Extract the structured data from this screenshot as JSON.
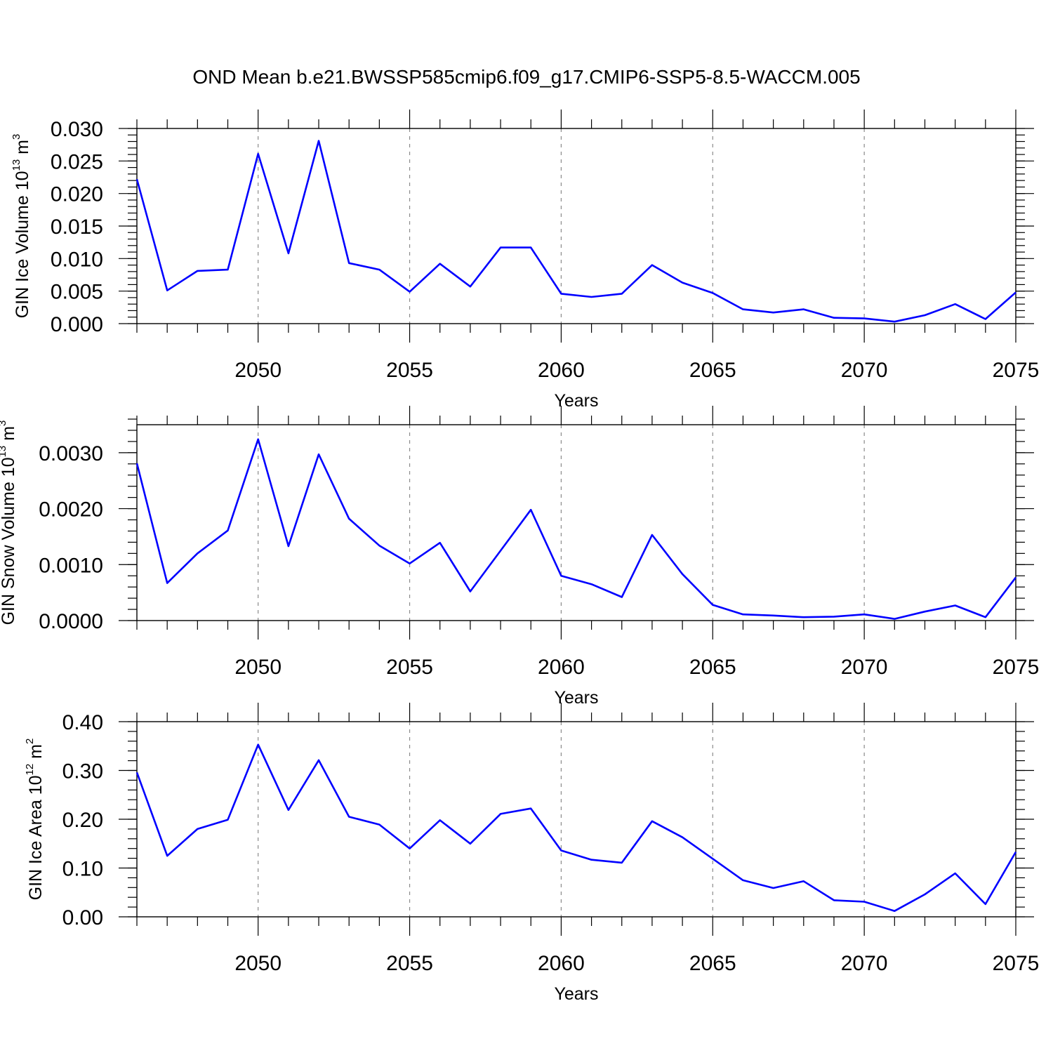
{
  "title": "OND Mean b.e21.BWSSP585cmip6.f09_g17.CMIP6-SSP5-8.5-WACCM.005",
  "chart_data": [
    {
      "type": "line",
      "xlabel": "Years",
      "ylabel": {
        "main": "GIN Ice Volume 10",
        "sup1": "13",
        "unit": " m",
        "sup2": "3"
      },
      "xlim": [
        2046,
        2075
      ],
      "ylim": [
        0,
        0.03
      ],
      "xticks": [
        2050,
        2055,
        2060,
        2065,
        2070,
        2075
      ],
      "yticks": [
        0.0,
        0.005,
        0.01,
        0.015,
        0.02,
        0.025,
        0.03
      ],
      "ytick_labels": [
        "0.000",
        "0.005",
        "0.010",
        "0.015",
        "0.020",
        "0.025",
        "0.030"
      ],
      "y_minor_step": 0.001,
      "grid": "vertical dashed at major x ticks",
      "color": "#0000ff",
      "x": [
        2046,
        2047,
        2048,
        2049,
        2050,
        2051,
        2052,
        2053,
        2054,
        2055,
        2056,
        2057,
        2058,
        2059,
        2060,
        2061,
        2062,
        2063,
        2064,
        2065,
        2066,
        2067,
        2068,
        2069,
        2070,
        2071,
        2072,
        2073,
        2074,
        2075
      ],
      "values": [
        0.0222,
        0.0051,
        0.0081,
        0.0083,
        0.0261,
        0.0108,
        0.0281,
        0.0093,
        0.0083,
        0.0049,
        0.0092,
        0.0057,
        0.0117,
        0.0117,
        0.0046,
        0.0041,
        0.0046,
        0.009,
        0.0063,
        0.0047,
        0.0022,
        0.0017,
        0.0022,
        0.0009,
        0.0008,
        0.0003,
        0.0013,
        0.003,
        0.0007,
        0.0048
      ]
    },
    {
      "type": "line",
      "xlabel": "Years",
      "ylabel": {
        "main": "GIN Snow Volume 10",
        "sup1": "13",
        "unit": " m",
        "sup2": "3"
      },
      "xlim": [
        2046,
        2075
      ],
      "ylim": [
        0,
        0.0035
      ],
      "xticks": [
        2050,
        2055,
        2060,
        2065,
        2070,
        2075
      ],
      "yticks": [
        0.0,
        0.001,
        0.002,
        0.003
      ],
      "ytick_labels": [
        "0.0000",
        "0.0010",
        "0.0020",
        "0.0030"
      ],
      "y_minor_step": 0.0002,
      "grid": "vertical dashed at major x ticks",
      "color": "#0000ff",
      "x": [
        2046,
        2047,
        2048,
        2049,
        2050,
        2051,
        2052,
        2053,
        2054,
        2055,
        2056,
        2057,
        2058,
        2059,
        2060,
        2061,
        2062,
        2063,
        2064,
        2065,
        2066,
        2067,
        2068,
        2069,
        2070,
        2071,
        2072,
        2073,
        2074,
        2075
      ],
      "values": [
        0.00281,
        0.00067,
        0.0012,
        0.00161,
        0.00324,
        0.00133,
        0.00297,
        0.00182,
        0.00134,
        0.00102,
        0.00139,
        0.00052,
        0.00125,
        0.00198,
        0.0008,
        0.00065,
        0.00042,
        0.00153,
        0.00083,
        0.00028,
        0.00011,
        9e-05,
        6e-05,
        7e-05,
        0.00011,
        3e-05,
        0.00016,
        0.00027,
        6e-05,
        0.00077
      ]
    },
    {
      "type": "line",
      "xlabel": "Years",
      "ylabel": {
        "main": "GIN Ice Area 10",
        "sup1": "12",
        "unit": " m",
        "sup2": "2"
      },
      "xlim": [
        2046,
        2075
      ],
      "ylim": [
        0,
        0.4
      ],
      "xticks": [
        2050,
        2055,
        2060,
        2065,
        2070,
        2075
      ],
      "yticks": [
        0.0,
        0.1,
        0.2,
        0.3,
        0.4
      ],
      "ytick_labels": [
        "0.00",
        "0.10",
        "0.20",
        "0.30",
        "0.40"
      ],
      "y_minor_step": 0.02,
      "grid": "vertical dashed at major x ticks",
      "color": "#0000ff",
      "x": [
        2046,
        2047,
        2048,
        2049,
        2050,
        2051,
        2052,
        2053,
        2054,
        2055,
        2056,
        2057,
        2058,
        2059,
        2060,
        2061,
        2062,
        2063,
        2064,
        2065,
        2066,
        2067,
        2068,
        2069,
        2070,
        2071,
        2072,
        2073,
        2074,
        2075
      ],
      "values": [
        0.296,
        0.125,
        0.18,
        0.199,
        0.353,
        0.219,
        0.321,
        0.205,
        0.189,
        0.14,
        0.198,
        0.15,
        0.211,
        0.222,
        0.136,
        0.117,
        0.111,
        0.196,
        0.163,
        0.119,
        0.075,
        0.059,
        0.073,
        0.034,
        0.031,
        0.012,
        0.046,
        0.089,
        0.026,
        0.133
      ]
    }
  ]
}
